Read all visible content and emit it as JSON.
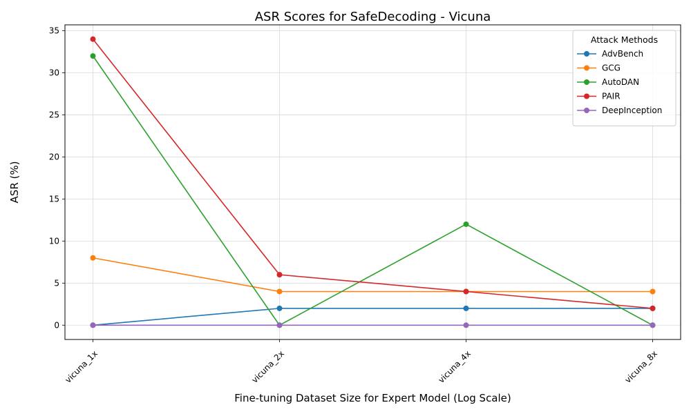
{
  "chart_data": {
    "type": "line",
    "title": "ASR Scores for SafeDecoding - Vicuna",
    "xlabel": "Fine-tuning Dataset Size for Expert Model (Log Scale)",
    "ylabel": "ASR (%)",
    "categories": [
      "vicuna_1x",
      "vicuna_2x",
      "vicuna_4x",
      "vicuna_8x"
    ],
    "ylim": [
      -1.7,
      35.7
    ],
    "yticks": [
      0,
      5,
      10,
      15,
      20,
      25,
      30,
      35
    ],
    "grid": true,
    "legend": {
      "title": "Attack Methods",
      "placement": "top-right"
    },
    "series": [
      {
        "name": "AdvBench",
        "color": "#1f77b4",
        "values": [
          0,
          2,
          2,
          2
        ]
      },
      {
        "name": "GCG",
        "color": "#ff7f0e",
        "values": [
          8,
          4,
          4,
          4
        ]
      },
      {
        "name": "AutoDAN",
        "color": "#2ca02c",
        "values": [
          32,
          0,
          12,
          0
        ]
      },
      {
        "name": "PAIR",
        "color": "#d62728",
        "values": [
          34,
          6,
          4,
          2
        ]
      },
      {
        "name": "DeepInception",
        "color": "#9467bd",
        "values": [
          0,
          0,
          0,
          0
        ]
      }
    ]
  }
}
